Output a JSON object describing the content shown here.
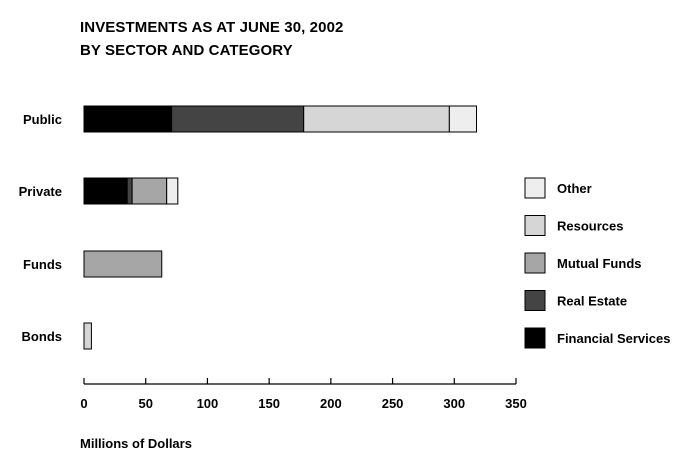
{
  "chart_data": {
    "type": "bar",
    "stacked": true,
    "orientation": "horizontal",
    "title": "INVESTMENTS AS AT JUNE 30, 2002",
    "subtitle": "BY SECTOR AND CATEGORY",
    "xlabel": "Millions of Dollars",
    "ylabel": "",
    "xlim": [
      0,
      350
    ],
    "xticks": [
      0,
      50,
      100,
      150,
      200,
      250,
      300,
      350
    ],
    "categories": [
      "Public",
      "Private",
      "Funds",
      "Bonds"
    ],
    "series": [
      {
        "name": "Financial Services",
        "color": "#000000",
        "values": [
          71,
          35,
          0,
          0
        ]
      },
      {
        "name": "Real Estate",
        "color": "#444444",
        "values": [
          107,
          4,
          0,
          0
        ]
      },
      {
        "name": "Mutual Funds",
        "color": "#a6a6a6",
        "values": [
          0,
          28,
          63,
          0
        ]
      },
      {
        "name": "Resources",
        "color": "#d6d6d6",
        "values": [
          118,
          0,
          0,
          6
        ]
      },
      {
        "name": "Other",
        "color": "#eeeeee",
        "values": [
          22,
          9,
          0,
          0
        ]
      }
    ],
    "legend_order": [
      "Other",
      "Resources",
      "Mutual Funds",
      "Real Estate",
      "Financial Services"
    ],
    "legend_position": "right",
    "grid": false
  }
}
